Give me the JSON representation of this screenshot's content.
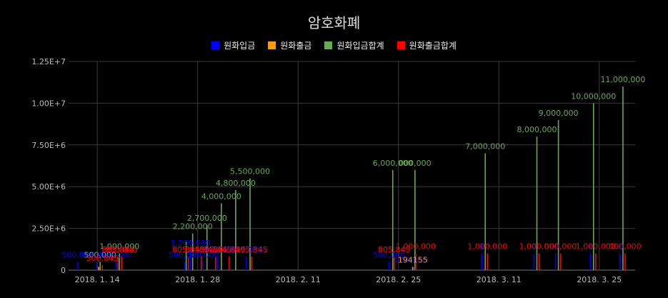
{
  "chart_data": {
    "type": "bar",
    "title": "암호화폐",
    "legend_position": "top",
    "grid": true,
    "ylim": [
      0,
      12500000
    ],
    "y_ticks": [
      "0",
      "2.50E+6",
      "5.00E+6",
      "7.50E+6",
      "1.00E+7",
      "1.25E+7"
    ],
    "y_tick_values": [
      0,
      2500000,
      5000000,
      7500000,
      10000000,
      12500000
    ],
    "x_ticks": [
      "2018. 1. 14",
      "2018. 1. 28",
      "2018. 2. 11",
      "2018. 2. 25",
      "2018. 3. 11",
      "2018. 3. 25"
    ],
    "x_tick_days": [
      13,
      27,
      41,
      55,
      69,
      83
    ],
    "x_range_days": [
      9,
      88
    ],
    "series": [
      {
        "name": "원화입금",
        "color": "#0000ff",
        "points": [
          {
            "day": 10.3,
            "value": 500000,
            "label": "500,000"
          },
          {
            "day": 12.9,
            "value": 500000,
            "label": "500,000"
          },
          {
            "day": 15.6,
            "value": 500000,
            "label": "500,000"
          },
          {
            "day": 25.2,
            "value": 500000,
            "label": "500,000"
          },
          {
            "day": 26.0,
            "value": 1200000,
            "label": "1,200,000"
          },
          {
            "day": 27.7,
            "value": 500000,
            "label": "500,000"
          },
          {
            "day": 29.8,
            "value": 800000,
            "label": "800,000"
          },
          {
            "day": 33.8,
            "value": 800000,
            "label": "800,000"
          },
          {
            "day": 53.7,
            "value": 500000,
            "label": "500,000"
          },
          {
            "day": 56.8,
            "value": 200000,
            "label": "200,000"
          },
          {
            "day": 66.6,
            "value": 1000000,
            "label": "1"
          },
          {
            "day": 73.9,
            "value": 1000000,
            "label": "1"
          },
          {
            "day": 76.9,
            "value": 1000000,
            "label": "1"
          },
          {
            "day": 81.8,
            "value": 1000000,
            "label": "1"
          },
          {
            "day": 85.9,
            "value": 1000000,
            "label": "1"
          }
        ]
      },
      {
        "name": "원화출금",
        "color": "#ff9900",
        "points": [
          {
            "day": 13.2,
            "value": 200000,
            "label": ""
          },
          {
            "day": 57.0,
            "value": 194155,
            "label": "194155"
          }
        ]
      },
      {
        "name": "원화입금합계",
        "color": "#66aa55",
        "points": [
          {
            "day": 13.4,
            "value": 500000,
            "label": "500,000"
          },
          {
            "day": 16.1,
            "value": 1000000,
            "label": "1,000,000"
          },
          {
            "day": 25.4,
            "value": 1700000,
            "label": ""
          },
          {
            "day": 26.3,
            "value": 2200000,
            "label": "2,200,000"
          },
          {
            "day": 28.3,
            "value": 2700000,
            "label": "2,700,000"
          },
          {
            "day": 30.3,
            "value": 4000000,
            "label": "4,000,000"
          },
          {
            "day": 32.3,
            "value": 4800000,
            "label": "4,800,000"
          },
          {
            "day": 34.3,
            "value": 5500000,
            "label": "5,500,000"
          },
          {
            "day": 54.2,
            "value": 6000000,
            "label": "6,000,000"
          },
          {
            "day": 57.3,
            "value": 6000000,
            "label": "000,000"
          },
          {
            "day": 67.1,
            "value": 7000000,
            "label": "7,000,000"
          },
          {
            "day": 74.3,
            "value": 8000000,
            "label": "8,000,000"
          },
          {
            "day": 77.3,
            "value": 9000000,
            "label": "9,000,000"
          },
          {
            "day": 82.2,
            "value": 10000000,
            "label": "10,000,000"
          },
          {
            "day": 86.3,
            "value": 11000000,
            "label": "11,000,000"
          }
        ]
      },
      {
        "name": "원화출금합계",
        "color": "#ff0000",
        "points": [
          {
            "day": 13.7,
            "value": 306845,
            "label": "306,845"
          },
          {
            "day": 15.9,
            "value": 805845,
            "label": "805,845"
          },
          {
            "day": 16.4,
            "value": 805845,
            "label": "805,845"
          },
          {
            "day": 25.7,
            "value": 805845,
            "label": "805,845"
          },
          {
            "day": 27.5,
            "value": 805845,
            "label": "805,845"
          },
          {
            "day": 29.5,
            "value": 805845,
            "label": "805,845"
          },
          {
            "day": 31.4,
            "value": 805845,
            "label": "805,845"
          },
          {
            "day": 34.5,
            "value": 805845,
            "label": "805,845"
          },
          {
            "day": 54.4,
            "value": 805845,
            "label": "805,845"
          },
          {
            "day": 57.4,
            "value": 1000000,
            "label": "1,000,000"
          },
          {
            "day": 67.4,
            "value": 1000000,
            "label": "1,000,000"
          },
          {
            "day": 74.6,
            "value": 1000000,
            "label": "1,000,000"
          },
          {
            "day": 77.6,
            "value": 1000000,
            "label": "000,000"
          },
          {
            "day": 82.5,
            "value": 1000000,
            "label": "1,000,000"
          },
          {
            "day": 86.6,
            "value": 1000000,
            "label": "000,000"
          }
        ]
      }
    ]
  }
}
